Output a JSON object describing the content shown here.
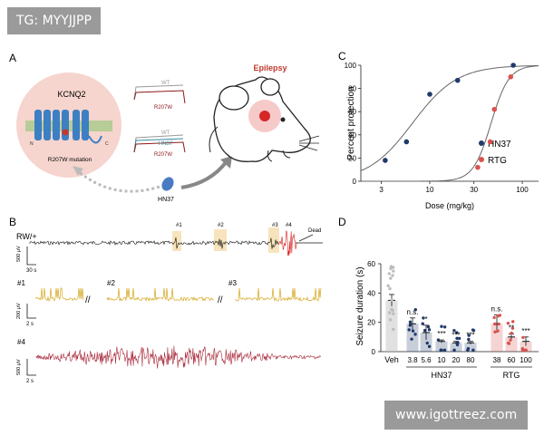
{
  "watermark_top": "TG: MYYJJPP",
  "watermark_bottom": "www.igottreez.com",
  "panelA": {
    "label": "A",
    "channel": "KCNQ2",
    "mutation": "R207W mutation",
    "wt1": "WT",
    "mut1": "R207W",
    "wt2": "WT",
    "hn2": "HN37",
    "r2": "R207W",
    "drug": "HN37",
    "phenotype": "Epilepsy",
    "n_terminal": "N",
    "c_terminal": "C"
  },
  "panelB": {
    "label": "B",
    "genotype": "RW/+",
    "markers": [
      "#1",
      "#2",
      "#3",
      "#4"
    ],
    "dead": "Dead",
    "scale1_v": "500 μV",
    "scale1_t": "30 s",
    "zoom_labels": [
      "#1",
      "#2",
      "#3"
    ],
    "break": "//",
    "scale2_v": "200 μV",
    "scale2_t": "2 s",
    "label4": "#4",
    "scale3_v": "500 μV",
    "scale3_t": "2 s"
  },
  "chartC": {
    "label": "C",
    "type": "scatter",
    "title": "",
    "xlabel": "Dose (mg/kg)",
    "ylabel": "Percent protection",
    "xscale": "log",
    "xlim": [
      1.8,
      150
    ],
    "ylim": [
      0,
      100
    ],
    "xticks": [
      3,
      10,
      30,
      100
    ],
    "yticks": [
      0,
      20,
      40,
      60,
      80,
      100
    ],
    "legend_position": "right",
    "series": [
      {
        "name": "HN37",
        "color": "#1f3a6b",
        "x": [
          3.3,
          5.6,
          10,
          20,
          80
        ],
        "y": [
          18,
          34,
          75,
          87,
          100
        ]
      },
      {
        "name": "RTG",
        "color": "#d9534f",
        "x": [
          33,
          45,
          50,
          75
        ],
        "y": [
          12,
          34,
          62,
          90
        ]
      }
    ]
  },
  "chartD": {
    "label": "D",
    "type": "bar",
    "title": "",
    "ylabel": "Seizure duration (s)",
    "ylim": [
      0,
      60
    ],
    "yticks": [
      0,
      20,
      40,
      60
    ],
    "categories": [
      "Veh",
      "3.8",
      "5.6",
      "10",
      "20",
      "80",
      "38",
      "60",
      "100"
    ],
    "values": [
      35,
      19,
      13,
      7,
      6,
      6,
      19,
      10,
      7
    ],
    "sem": [
      4,
      4,
      5,
      1,
      1,
      1,
      6,
      2,
      3
    ],
    "colors": [
      "#bdbdbd",
      "#1f3a6b",
      "#1f3a6b",
      "#1f3a6b",
      "#1f3a6b",
      "#1f3a6b",
      "#d9534f",
      "#d9534f",
      "#d9534f"
    ],
    "significance": [
      "",
      "n.s.",
      "*",
      "***",
      "***",
      "***",
      "n.s.",
      "**",
      "***"
    ],
    "groups": [
      {
        "name": "HN37",
        "from": 1,
        "to": 5
      },
      {
        "name": "RTG",
        "from": 6,
        "to": 8
      }
    ]
  }
}
